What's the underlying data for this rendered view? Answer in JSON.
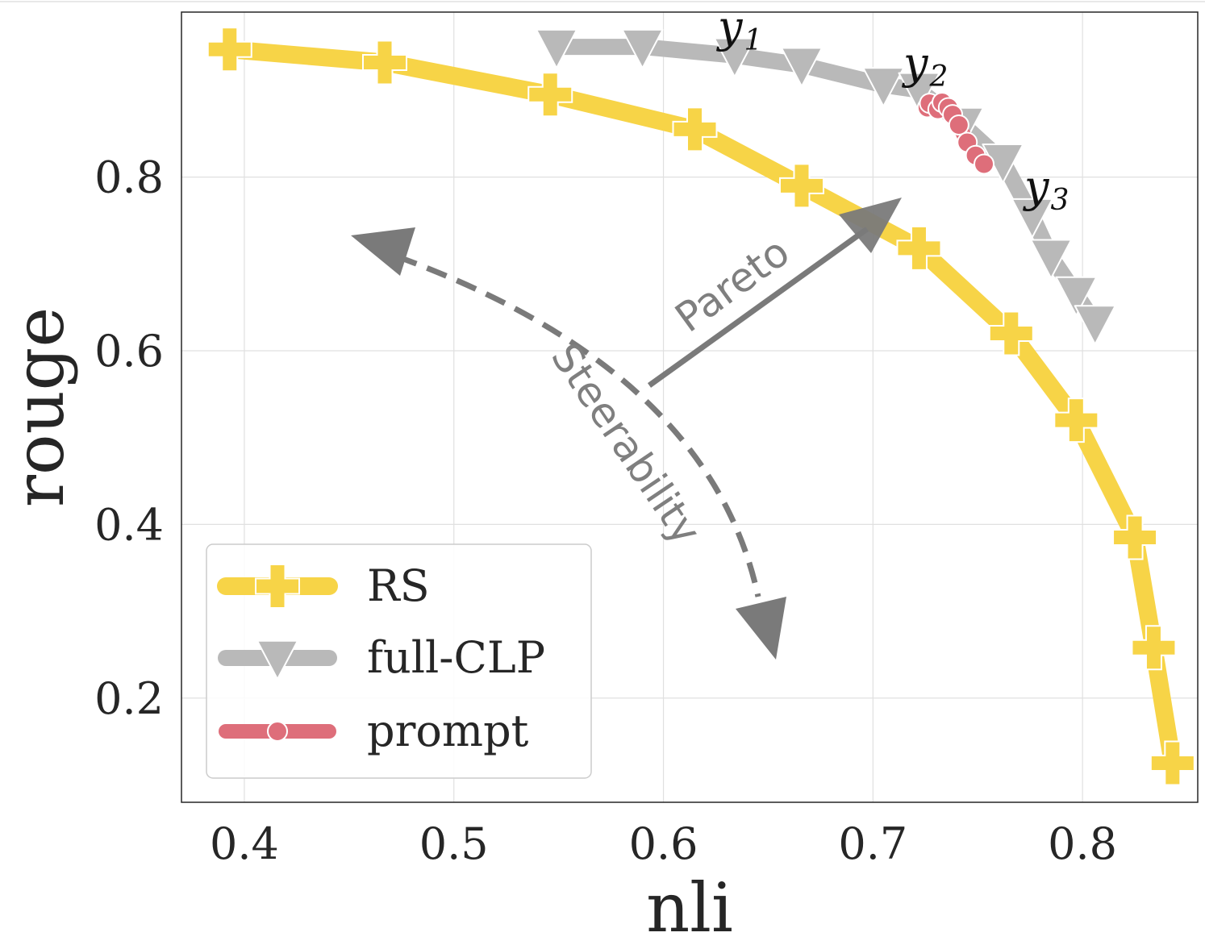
{
  "chart_data": {
    "type": "line",
    "title": "",
    "xlabel": "nli",
    "ylabel": "rouge",
    "xlim": [
      0.37,
      0.855
    ],
    "ylim": [
      0.08,
      0.99
    ],
    "xticks": [
      0.4,
      0.5,
      0.6,
      0.7,
      0.8
    ],
    "yticks": [
      0.2,
      0.4,
      0.6,
      0.8
    ],
    "xtick_labels": [
      "0.4",
      "0.5",
      "0.6",
      "0.7",
      "0.8"
    ],
    "ytick_labels": [
      "0.2",
      "0.4",
      "0.6",
      "0.8"
    ],
    "grid": true,
    "legend_position": "lower-left",
    "series": [
      {
        "name": "RS",
        "marker": "plus",
        "color": "#f7d447",
        "points": [
          [
            0.393,
            0.947
          ],
          [
            0.467,
            0.932
          ],
          [
            0.546,
            0.895
          ],
          [
            0.615,
            0.855
          ],
          [
            0.666,
            0.79
          ],
          [
            0.722,
            0.718
          ],
          [
            0.766,
            0.62
          ],
          [
            0.797,
            0.52
          ],
          [
            0.825,
            0.385
          ],
          [
            0.834,
            0.258
          ],
          [
            0.843,
            0.125
          ]
        ]
      },
      {
        "name": "full-CLP",
        "marker": "triangle-down",
        "color": "#b9b9b9",
        "points": [
          [
            0.549,
            0.95
          ],
          [
            0.59,
            0.95
          ],
          [
            0.634,
            0.94
          ],
          [
            0.666,
            0.929
          ],
          [
            0.705,
            0.906
          ],
          [
            0.722,
            0.9
          ],
          [
            0.743,
            0.86
          ],
          [
            0.762,
            0.818
          ],
          [
            0.776,
            0.755
          ],
          [
            0.785,
            0.708
          ],
          [
            0.797,
            0.665
          ],
          [
            0.806,
            0.632
          ]
        ]
      },
      {
        "name": "prompt",
        "marker": "circle",
        "color": "#de6e7a",
        "points": [
          [
            0.726,
            0.88
          ],
          [
            0.727,
            0.885
          ],
          [
            0.731,
            0.878
          ],
          [
            0.733,
            0.886
          ],
          [
            0.736,
            0.88
          ],
          [
            0.738,
            0.872
          ],
          [
            0.741,
            0.86
          ],
          [
            0.745,
            0.84
          ],
          [
            0.749,
            0.825
          ],
          [
            0.753,
            0.815
          ]
        ]
      }
    ],
    "annotations": [
      {
        "text": "Pareto",
        "type": "solid-arrow"
      },
      {
        "text": "Steerability",
        "type": "dashed-double-arrow"
      },
      {
        "label": "y",
        "sub": "1"
      },
      {
        "label": "y",
        "sub": "2"
      },
      {
        "label": "y",
        "sub": "3"
      }
    ]
  }
}
